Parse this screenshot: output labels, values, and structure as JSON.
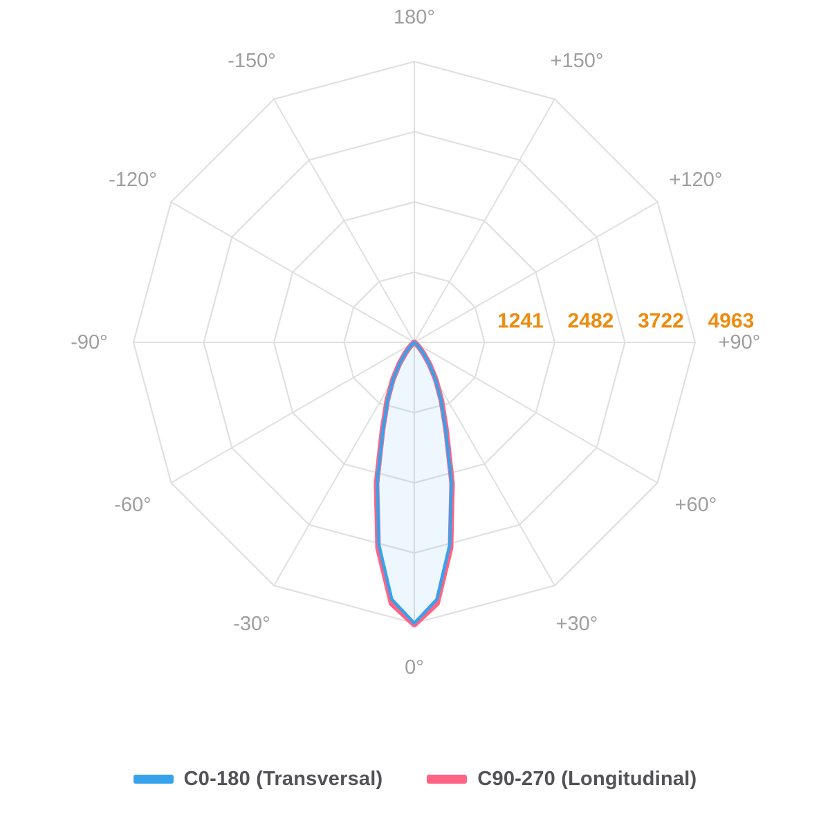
{
  "page": {
    "background": "#ffffff"
  },
  "chart_data": {
    "type": "polar",
    "description": "Photometric polar luminous intensity distribution diagram",
    "angle_labels": [
      "180°",
      "+150°",
      "+120°",
      "+90°",
      "+60°",
      "+30°",
      "0°",
      "-30°",
      "-60°",
      "-90°",
      "-120°",
      "-150°"
    ],
    "angle_label_color": "#9e9e9e",
    "radial_ticks": [
      "1241",
      "2482",
      "3722",
      "4963"
    ],
    "radial_tick_values": [
      1241,
      2482,
      3722,
      4963
    ],
    "tick_color": "#ee8b0e",
    "rmax": 4963,
    "grid": {
      "rings": 4,
      "spoke_step_deg": 30,
      "shape": "polygon",
      "color": "#e0e0e0"
    },
    "gamma_step_deg": 5,
    "symmetric": true,
    "series": [
      {
        "name": "C90-270 (Longitudinal)",
        "color": "#FF6384",
        "fill": "none",
        "stroke_width": 8,
        "values": [
          4990,
          4630,
          3690,
          2580,
          1645,
          1135,
          760,
          465,
          250,
          116,
          44,
          12,
          0,
          0,
          0,
          0,
          0,
          0,
          0,
          0,
          0,
          0,
          0,
          0,
          0,
          0,
          0,
          0,
          0,
          0,
          0,
          0,
          0,
          0,
          0,
          0,
          0
        ]
      },
      {
        "name": "C0-180 (Transversal)",
        "color": "#36A2EB",
        "fill": "rgba(54,162,235,0.09)",
        "stroke_width": 4.5,
        "values": [
          4963,
          4560,
          3620,
          2530,
          1610,
          1110,
          740,
          450,
          240,
          110,
          40,
          10,
          0,
          0,
          0,
          0,
          0,
          0,
          0,
          0,
          0,
          0,
          0,
          0,
          0,
          0,
          0,
          0,
          0,
          0,
          0,
          0,
          0,
          0,
          0,
          0,
          0
        ]
      }
    ]
  },
  "legend": {
    "items": [
      {
        "label": "C0-180 (Transversal)",
        "color": "#36A2EB"
      },
      {
        "label": "C90-270 (Longitudinal)",
        "color": "#FF6384"
      }
    ]
  }
}
